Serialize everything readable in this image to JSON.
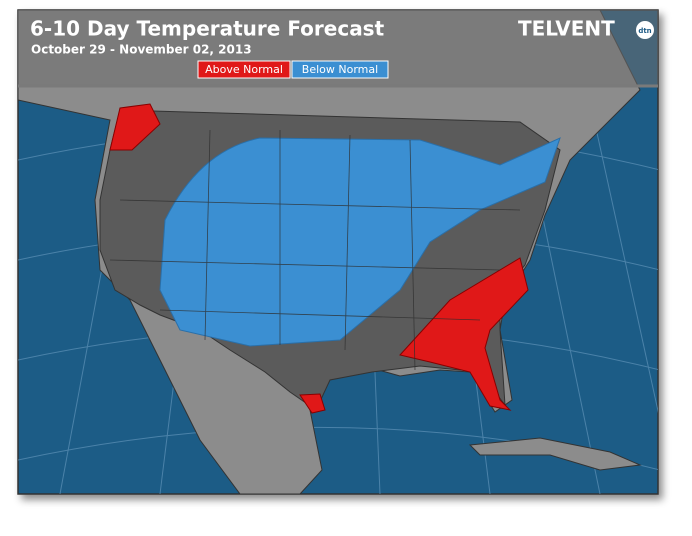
{
  "header": {
    "title": "6-10 Day Temperature Forecast",
    "subtitle": "October 29 - November 02, 2013"
  },
  "legend": [
    {
      "label": "Above Normal",
      "color": "#e01818"
    },
    {
      "label": "Below Normal",
      "color": "#3b8fd2"
    }
  ],
  "logo": {
    "brand": "TELVENT",
    "badge": "dtn"
  }
}
